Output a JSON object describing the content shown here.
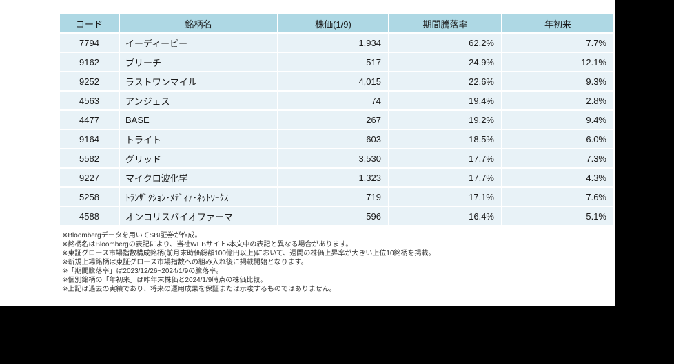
{
  "table": {
    "headers": {
      "code": "コード",
      "name": "銘柄名",
      "price": "株価(1/9)",
      "period_change": "期間騰落率",
      "ytd": "年初来"
    },
    "rows": [
      {
        "code": "7794",
        "name": "イーディーピー",
        "price": "1,934",
        "period_change": "62.2%",
        "ytd": "7.7%"
      },
      {
        "code": "9162",
        "name": "ブリーチ",
        "price": "517",
        "period_change": "24.9%",
        "ytd": "12.1%"
      },
      {
        "code": "9252",
        "name": "ラストワンマイル",
        "price": "4,015",
        "period_change": "22.6%",
        "ytd": "9.3%"
      },
      {
        "code": "4563",
        "name": "アンジェス",
        "price": "74",
        "period_change": "19.4%",
        "ytd": "2.8%"
      },
      {
        "code": "4477",
        "name": "BASE",
        "price": "267",
        "period_change": "19.2%",
        "ytd": "9.4%"
      },
      {
        "code": "9164",
        "name": "トライト",
        "price": "603",
        "period_change": "18.5%",
        "ytd": "6.0%"
      },
      {
        "code": "5582",
        "name": "グリッド",
        "price": "3,530",
        "period_change": "17.7%",
        "ytd": "7.3%"
      },
      {
        "code": "9227",
        "name": "マイクロ波化学",
        "price": "1,323",
        "period_change": "17.7%",
        "ytd": "4.3%"
      },
      {
        "code": "5258",
        "name": "ﾄﾗﾝｻﾞｸｼｮﾝ･ﾒﾃﾞｨｱ･ﾈｯﾄﾜｰｸｽ",
        "price": "719",
        "period_change": "17.1%",
        "ytd": "7.6%"
      },
      {
        "code": "4588",
        "name": "オンコリスバイオファーマ",
        "price": "596",
        "period_change": "16.4%",
        "ytd": "5.1%"
      }
    ]
  },
  "footnotes": [
    "※Bloombergデータを用いてSBI証券が作成。",
    "※銘柄名はBloombergの表記により、当社WEBサイト・本文中の表記と異なる場合があります。",
    "※東証グロース市場指数構成銘柄(前月末時価総額100億円以上)において、週間の株価上昇率が大きい上位10銘柄を掲載。",
    "※新規上場銘柄は東証グロース市場指数への組み入れ後に掲載開始となります。",
    "※「期間騰落率」は2023/12/26~2024/1/9の騰落率。",
    "※個別銘柄の「年初来」は昨年末株価と2024/1/9時点の株価比較。",
    "※上記は過去の実績であり、将来の運用成果を保証または示唆するものではありません。"
  ],
  "colors": {
    "header_bg": "#aed8e4",
    "row_bg": "#e8f2f7",
    "text": "#1a1a1a",
    "content_bg": "#ffffff",
    "canvas_bg": "#000000"
  }
}
